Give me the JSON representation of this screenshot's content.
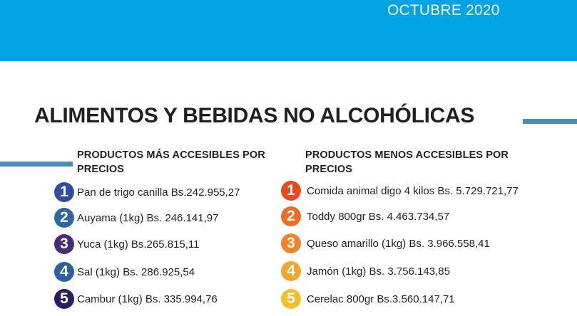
{
  "header": {
    "date": "OCTUBRE 2020"
  },
  "title": "ALIMENTOS Y BEBIDAS NO ALCOHÓLICAS",
  "colors": {
    "banner": "#00a3e3",
    "accent_bar": "#4a8fb3",
    "left_badges": [
      "#2e4f9c",
      "#2f66a8",
      "#4b2a78",
      "#2f5fa0",
      "#2d1d5c"
    ],
    "right_badges": [
      "#e8491d",
      "#ee6b25",
      "#f08428",
      "#f4a52e",
      "#f3bf2c"
    ]
  },
  "most_accessible": {
    "heading_line1": "PRODUCTOS MÁS ACCESIBLES POR",
    "heading_line2": "PRECIOS",
    "items": [
      {
        "rank": "1",
        "text": "Pan de trigo canilla Bs.242.955,27"
      },
      {
        "rank": "2",
        "text": "Auyama (1kg) Bs. 246.141,97"
      },
      {
        "rank": "3",
        "text": "Yuca (1kg) Bs.265.815,11"
      },
      {
        "rank": "4",
        "text": "Sal (1kg) Bs. 286.925,54"
      },
      {
        "rank": "5",
        "text": "Cambur (1kg) Bs. 335.994,76"
      }
    ]
  },
  "least_accessible": {
    "heading_line1": "PRODUCTOS MENOS ACCESIBLES POR",
    "heading_line2": "PRECIOS",
    "items": [
      {
        "rank": "1",
        "text": "Comida animal digo 4 kilos Bs. 5.729.721,77"
      },
      {
        "rank": "2",
        "text": "Toddy 800gr Bs. 4.463.734,57"
      },
      {
        "rank": "3",
        "text": "Queso amarillo (1kg) Bs. 3.966.558,41"
      },
      {
        "rank": "4",
        "text": "Jamón (1kg) Bs. 3.756.143,85"
      },
      {
        "rank": "5",
        "text": "Cerelac 800gr Bs.3.560.147,71"
      }
    ]
  }
}
